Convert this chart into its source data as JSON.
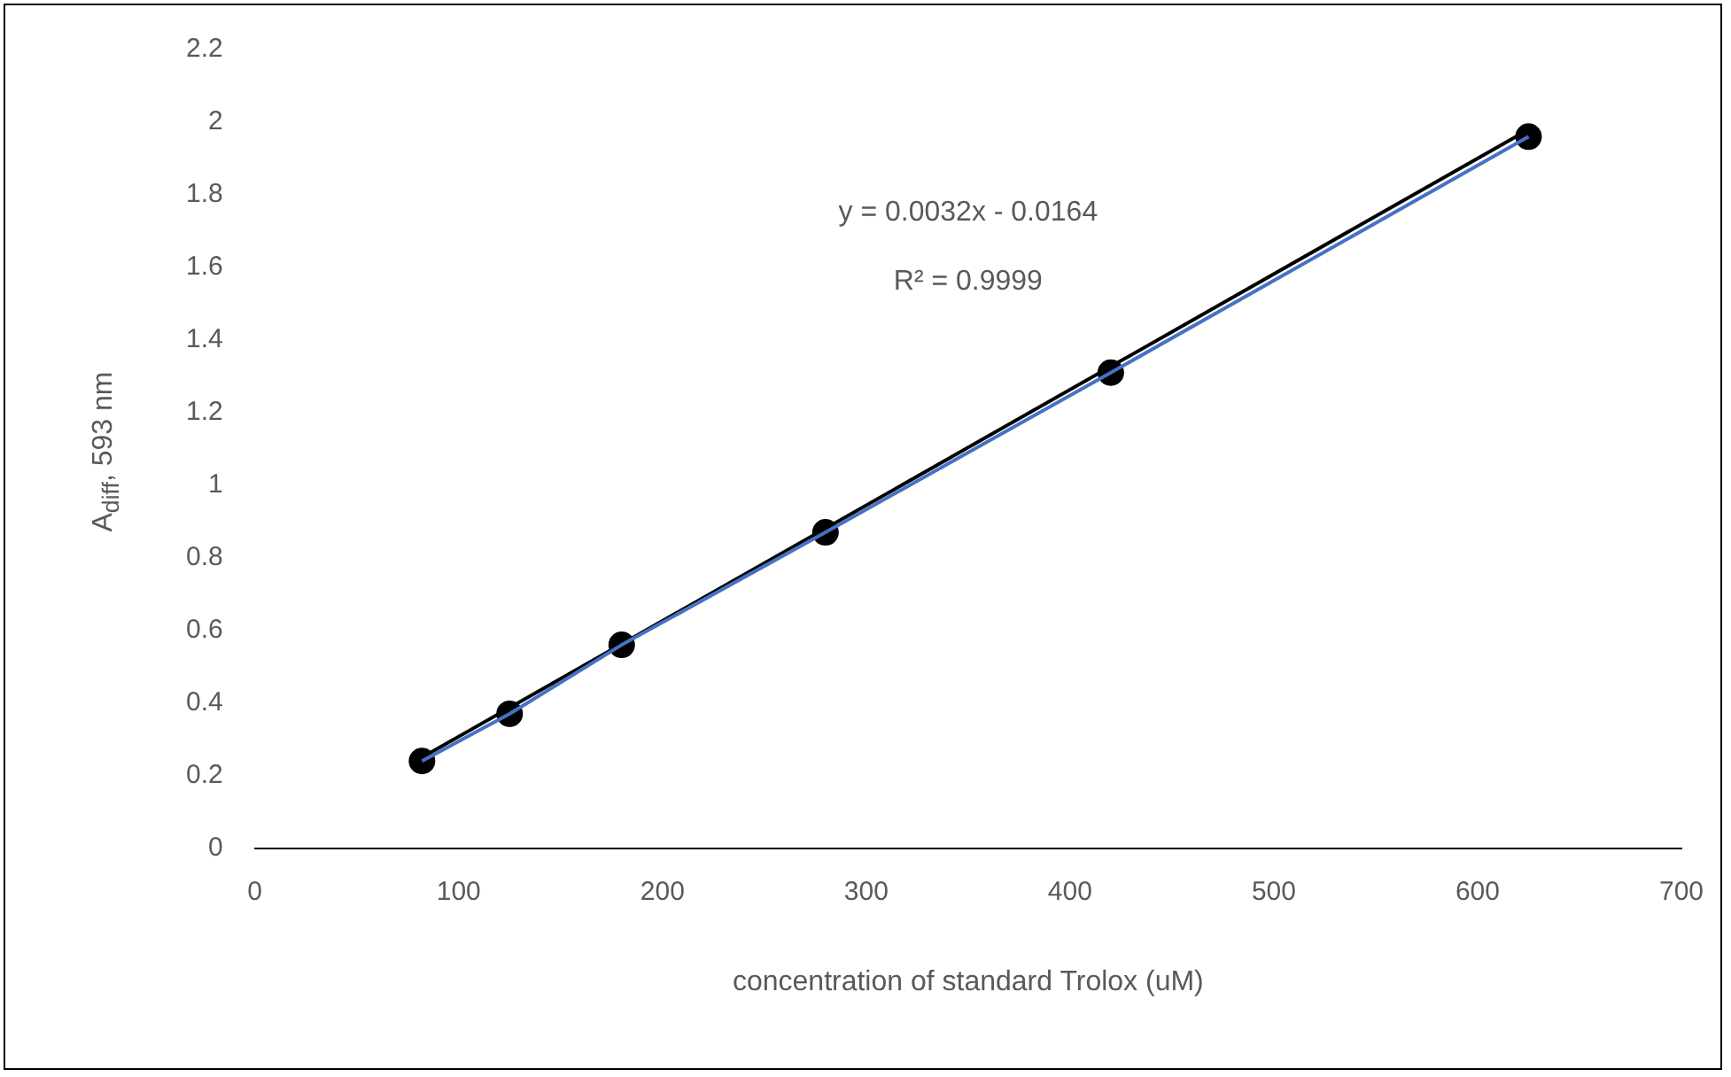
{
  "chart_data": {
    "type": "scatter",
    "xlabel": "concentration of standard Trolox (uM)",
    "ylabel": "A$_{diff}$, 593 nm",
    "x": [
      82,
      125,
      180,
      280,
      420,
      625
    ],
    "series": [
      {
        "type": "line",
        "color": "#4472c4",
        "values": [
          0.24,
          0.37,
          0.56,
          0.87,
          1.31,
          1.96
        ],
        "marker": "none"
      },
      {
        "type": "line",
        "color": "#000000",
        "x": [
          82,
          625
        ],
        "values": [
          0.25,
          1.98
        ],
        "marker": "none"
      },
      {
        "color": "#000000",
        "values": [
          0.24,
          0.37,
          0.56,
          0.87,
          1.31,
          1.96
        ],
        "marker": "circle"
      }
    ],
    "annotations": [
      "y = 0.0032x - 0.0164",
      "R² = 0.9999"
    ],
    "xlim": [
      0,
      700
    ],
    "xticks": [
      0,
      100,
      200,
      300,
      400,
      500,
      600,
      700
    ],
    "ylim": [
      0,
      2.2
    ],
    "yticks": [
      0,
      0.2,
      0.4,
      0.6,
      0.8,
      1,
      1.2,
      1.4,
      1.6,
      1.8,
      2,
      2.2
    ],
    "grid": false,
    "legend": false
  }
}
